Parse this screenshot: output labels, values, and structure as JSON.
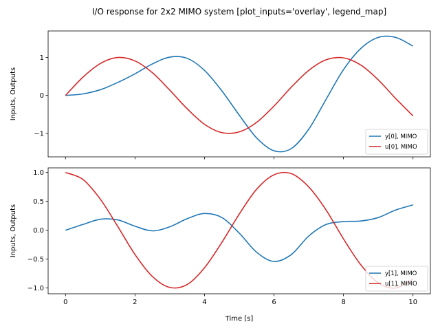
{
  "figure": {
    "title": "I/O response for 2x2 MIMO system [plot_inputs='overlay', legend_map]",
    "xlabel": "Time [s]"
  },
  "chart_data": [
    {
      "type": "line",
      "ylabel": "Inputs, Outputs",
      "xlim": [
        -0.5,
        10.5
      ],
      "ylim": [
        -1.62,
        1.7
      ],
      "xticks": [
        0,
        2,
        4,
        6,
        8,
        10
      ],
      "xtick_labels_visible": false,
      "yticks": [
        -1,
        0,
        1
      ],
      "ytick_labels": [
        "−1",
        "0",
        "1"
      ],
      "grid": false,
      "legend": {
        "placement": "lower-right"
      },
      "series": [
        {
          "name": "y[0], MIMO",
          "color": "#1f77b4",
          "x": [
            0,
            0.5,
            1,
            1.5,
            2,
            2.5,
            3,
            3.5,
            4,
            4.5,
            5,
            5.5,
            6,
            6.5,
            7,
            7.5,
            8,
            8.5,
            9,
            9.5,
            10
          ],
          "y": [
            0,
            0.04,
            0.15,
            0.34,
            0.57,
            0.83,
            1.01,
            0.98,
            0.66,
            0.12,
            -0.52,
            -1.12,
            -1.46,
            -1.4,
            -0.89,
            -0.1,
            0.68,
            1.24,
            1.53,
            1.53,
            1.3
          ]
        },
        {
          "name": "u[0], MIMO",
          "color": "#d62728",
          "x": [
            0,
            0.5,
            1,
            1.5,
            2,
            2.5,
            3,
            3.5,
            4,
            4.5,
            5,
            5.5,
            6,
            6.5,
            7,
            7.5,
            8,
            8.5,
            9,
            9.5,
            10
          ],
          "y": [
            0,
            0.48,
            0.84,
            1.0,
            0.91,
            0.6,
            0.14,
            -0.35,
            -0.76,
            -0.98,
            -0.96,
            -0.71,
            -0.28,
            0.22,
            0.66,
            0.94,
            0.99,
            0.8,
            0.41,
            -0.08,
            -0.54
          ]
        }
      ]
    },
    {
      "type": "line",
      "ylabel": "Inputs, Outputs",
      "xlim": [
        -0.5,
        10.5
      ],
      "ylim": [
        -1.1,
        1.08
      ],
      "xticks": [
        0,
        2,
        4,
        6,
        8,
        10
      ],
      "xtick_labels": [
        "0",
        "2",
        "4",
        "6",
        "8",
        "10"
      ],
      "yticks": [
        -1.0,
        -0.5,
        0.0,
        0.5,
        1.0
      ],
      "ytick_labels": [
        "−1.0",
        "−0.5",
        "0.0",
        "0.5",
        "1.0"
      ],
      "grid": false,
      "legend": {
        "placement": "lower-right"
      },
      "series": [
        {
          "name": "y[1], MIMO",
          "color": "#1f77b4",
          "x": [
            0,
            0.5,
            1,
            1.5,
            2,
            2.5,
            3,
            3.5,
            4,
            4.5,
            5,
            5.5,
            6,
            6.5,
            7,
            7.5,
            8,
            8.5,
            9,
            9.5,
            10
          ],
          "y": [
            0,
            0.1,
            0.19,
            0.18,
            0.07,
            -0.01,
            0.06,
            0.2,
            0.29,
            0.22,
            -0.05,
            -0.38,
            -0.54,
            -0.42,
            -0.1,
            0.1,
            0.15,
            0.16,
            0.22,
            0.35,
            0.44
          ]
        },
        {
          "name": "u[1], MIMO",
          "color": "#d62728",
          "x": [
            0,
            0.5,
            1,
            1.5,
            2,
            2.5,
            3,
            3.5,
            4,
            4.5,
            5,
            5.5,
            6,
            6.5,
            7,
            7.5,
            8,
            8.5,
            9,
            9.5,
            10
          ],
          "y": [
            1.0,
            0.88,
            0.54,
            0.07,
            -0.42,
            -0.8,
            -0.99,
            -0.94,
            -0.65,
            -0.21,
            0.28,
            0.71,
            0.96,
            0.98,
            0.75,
            0.35,
            -0.15,
            -0.6,
            -0.91,
            -1.0,
            -0.84
          ]
        }
      ]
    }
  ]
}
